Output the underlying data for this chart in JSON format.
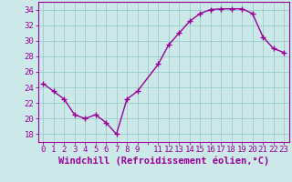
{
  "x": [
    0,
    1,
    2,
    3,
    4,
    5,
    6,
    7,
    8,
    9,
    11,
    12,
    13,
    14,
    15,
    16,
    17,
    18,
    19,
    20,
    21,
    22,
    23
  ],
  "y": [
    24.5,
    23.5,
    22.5,
    20.5,
    20.0,
    20.5,
    19.5,
    18.0,
    22.5,
    23.5,
    27.0,
    29.5,
    31.0,
    32.5,
    33.5,
    34.0,
    34.1,
    34.1,
    34.1,
    33.5,
    30.5,
    29.0,
    28.5
  ],
  "line_color": "#990099",
  "marker": "+",
  "marker_size": 4,
  "bg_color": "#cce8e8",
  "grid_color": "#99cccc",
  "xlabel": "Windchill (Refroidissement éolien,°C)",
  "xlabel_color": "#990099",
  "xlim": [
    -0.5,
    23.5
  ],
  "ylim": [
    17,
    35
  ],
  "yticks": [
    18,
    20,
    22,
    24,
    26,
    28,
    30,
    32,
    34
  ],
  "xtick_labels": [
    "0",
    "1",
    "2",
    "3",
    "4",
    "5",
    "6",
    "7",
    "8",
    "9",
    "",
    "11",
    "12",
    "13",
    "14",
    "15",
    "16",
    "17",
    "18",
    "19",
    "20",
    "21",
    "22",
    "23"
  ],
  "tick_color": "#990099",
  "tick_fontsize": 6.5,
  "xlabel_fontsize": 7.5,
  "line_width": 1.0
}
